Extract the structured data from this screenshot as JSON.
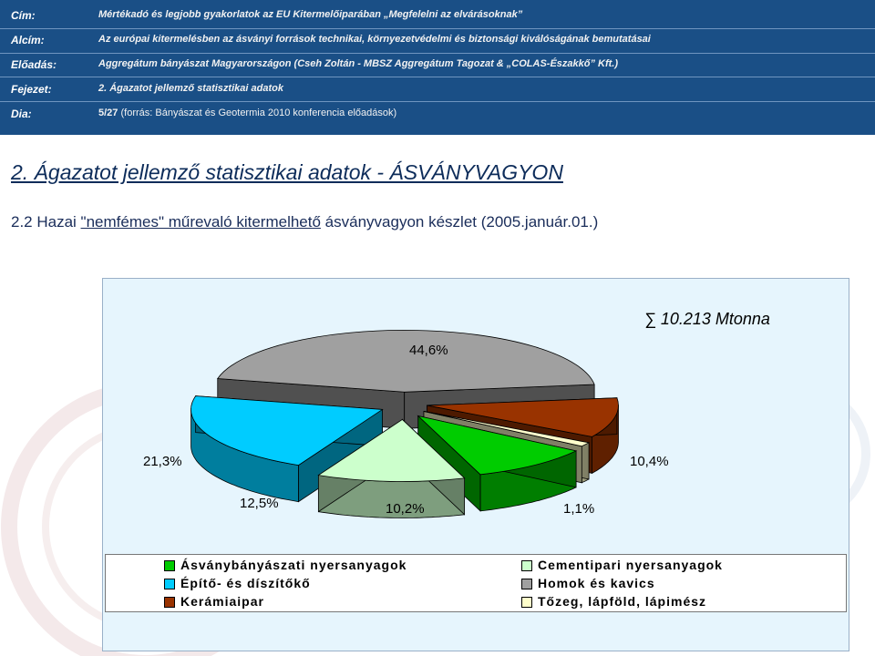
{
  "header": {
    "rows": [
      {
        "label": "Cím:",
        "value": "Mértékadó és legjobb gyakorlatok az EU Kitermelőiparában „Megfelelni az elvárásoknak”"
      },
      {
        "label": "Alcím:",
        "value": "Az európai kitermelésben az ásványi források technikai, környezetvédelmi és biztonsági kiválóságának bemutatásai"
      },
      {
        "label": "Előadás:",
        "value": "Aggregátum bányászat Magyarországon   (Cseh Zoltán - MBSZ Aggregátum Tagozat & „COLAS-Északkő” Kft.)"
      },
      {
        "label": "Fejezet:",
        "value": "2. Ágazatot jellemző statisztikai adatok"
      },
      {
        "label": "Dia:",
        "value_bold": "5/27",
        "value": " (forrás: Bányászat és Geotermia 2010 konferencia előadások)"
      }
    ]
  },
  "title": "2.  Ágazatot jellemző statisztikai adatok - ÁSVÁNYVAGYON",
  "subtitle": {
    "prefix": "2.2 Hazai ",
    "underlined": "\"nemfémes\" műrevaló kitermelhető",
    "suffix": " ásványvagyon készlet (2005.január.01.)"
  },
  "chart_data": {
    "type": "pie",
    "title": "∑ 10.213 Mtonna",
    "slices": [
      {
        "name": "Homok és kavics",
        "value": 44.6,
        "label": "44,6%",
        "color": "#a0a0a0"
      },
      {
        "name": "Kerámiaipar",
        "value": 10.4,
        "label": "10,4%",
        "color": "#993300"
      },
      {
        "name": "Tőzeg, lápföld, lápimész",
        "value": 1.1,
        "label": "1,1%",
        "color": "#ffffcc"
      },
      {
        "name": "Ásványbányászati nyersanyagok",
        "value": 10.2,
        "label": "10,2%",
        "color": "#00cc00"
      },
      {
        "name": "Cementipari nyersanyagok",
        "value": 12.5,
        "label": "12,5%",
        "color": "#ccffcc"
      },
      {
        "name": "Építő- és díszítőkő",
        "value": 21.3,
        "label": "21,3%",
        "color": "#00ccff"
      }
    ],
    "legend": [
      {
        "name": "Ásványbányászati nyersanyagok",
        "color": "#00cc00"
      },
      {
        "name": "Cementipari nyersanyagok",
        "color": "#ccffcc"
      },
      {
        "name": "Építő- és díszítőkő",
        "color": "#00ccff"
      },
      {
        "name": "Homok és kavics",
        "color": "#a0a0a0"
      },
      {
        "name": "Kerámiaipar",
        "color": "#993300"
      },
      {
        "name": "Tőzeg, lápföld, lápimész",
        "color": "#ffffcc"
      }
    ]
  }
}
